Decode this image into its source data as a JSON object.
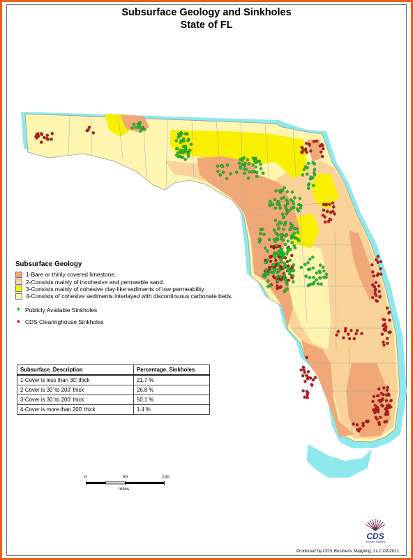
{
  "title": {
    "line1": "Subsurface Geology and Sinkholes",
    "line2": "State of FL"
  },
  "colors": {
    "border_orange": "#e8641e",
    "water_halo": "#8ee8ec",
    "zone1": "#f0a878",
    "zone2": "#fad39a",
    "zone3": "#f8f000",
    "zone4": "#fdf5b0",
    "public_sinkhole": "#22c02a",
    "cds_sinkhole": "#c41818"
  },
  "legend": {
    "heading": "Subsurface Geology",
    "items": [
      {
        "label": "1-Bare or thinly covered limestone.",
        "color": "#f0a878"
      },
      {
        "label": "2-Consists mainly of incohesive and permeable sand.",
        "color": "#fad39a"
      },
      {
        "label": "3-Consists mainly of cohesive clay-like sediments of low permeability.",
        "color": "#f8f000"
      },
      {
        "label": "4-Consists of cohesive sediments interlayed with discontinuous carbonate beds.",
        "color": "#fdf5b0"
      }
    ],
    "symbols": [
      {
        "label": "Publicly Available Sinkholes",
        "icon": "green-plus-dot",
        "color": "#22c02a"
      },
      {
        "label": "CDS Clearinghouse Sinkholes",
        "icon": "red-dot",
        "color": "#c41818"
      }
    ]
  },
  "table": {
    "headers": [
      "Subsurface_Description",
      "Percentage_Sinkholes"
    ],
    "rows": [
      [
        "1-Cover is less than 30' thick",
        "21.7 %"
      ],
      [
        "2-Cover is 30' to 200' thick",
        "26.8 %"
      ],
      [
        "3-Cover is 30' to 200' thick",
        "50.1 %"
      ],
      [
        "4-Cover is more than 200' thick",
        "1.4 %"
      ]
    ]
  },
  "scale_bar": {
    "ticks": [
      "0",
      "50",
      "100"
    ],
    "unit": "miles"
  },
  "credit": "Produced by CDS Business Mapping, LLC 02/2011",
  "logo": {
    "text": "CDS",
    "subtext": "Business Mapping"
  }
}
